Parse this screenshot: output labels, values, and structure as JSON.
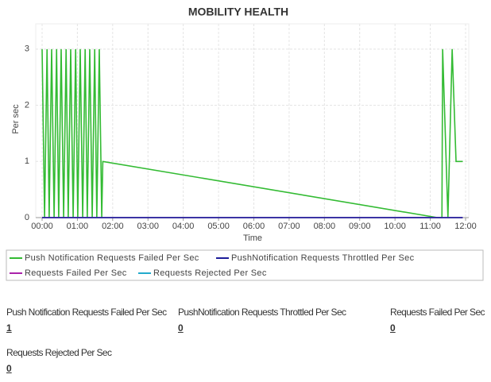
{
  "chart_data": {
    "type": "line",
    "title": "MOBILITY HEALTH",
    "y_label": "Per sec",
    "x_label": "Time",
    "x": [
      0,
      0.07,
      0.14,
      0.2,
      0.27,
      0.34,
      0.41,
      0.47,
      0.54,
      0.61,
      0.68,
      0.74,
      0.81,
      0.88,
      0.95,
      1.01,
      1.08,
      1.15,
      1.22,
      1.28,
      1.35,
      1.42,
      1.49,
      1.55,
      1.62,
      1.69,
      1.72,
      11.2,
      11.33,
      11.35,
      11.5,
      11.62,
      11.73,
      11.92
    ],
    "series": [
      {
        "name": "Push Notification Requests Failed Per Sec",
        "color": "#33bb33",
        "values": [
          3,
          0,
          3,
          0,
          3,
          0,
          3,
          0,
          3,
          0,
          3,
          0,
          3,
          0,
          3,
          0,
          3,
          0,
          3,
          0,
          3,
          0,
          3,
          0,
          3,
          0,
          1,
          0,
          0,
          3,
          0,
          3,
          1,
          1
        ]
      },
      {
        "name": "PushNotification Requests Throttled Per Sec",
        "color": "#1c1c99",
        "values": [
          0,
          0,
          0,
          0,
          0,
          0,
          0,
          0,
          0,
          0,
          0,
          0,
          0,
          0,
          0,
          0,
          0,
          0,
          0,
          0,
          0,
          0,
          0,
          0,
          0,
          0,
          0,
          0,
          0,
          0,
          0,
          0,
          0,
          0
        ]
      },
      {
        "name": "Requests Failed Per Sec",
        "color": "#aa22aa",
        "values": [
          0,
          0,
          0,
          0,
          0,
          0,
          0,
          0,
          0,
          0,
          0,
          0,
          0,
          0,
          0,
          0,
          0,
          0,
          0,
          0,
          0,
          0,
          0,
          0,
          0,
          0,
          0,
          0,
          0,
          0,
          0,
          0,
          0,
          0
        ]
      },
      {
        "name": "Requests Rejected Per Sec",
        "color": "#22aacc",
        "values": [
          0,
          0,
          0,
          0,
          0,
          0,
          0,
          0,
          0,
          0,
          0,
          0,
          0,
          0,
          0,
          0,
          0,
          0,
          0,
          0,
          0,
          0,
          0,
          0,
          0,
          0,
          0,
          0,
          0,
          0,
          0,
          0,
          0,
          0
        ]
      }
    ],
    "xlim": [
      -0.18,
      12.09
    ],
    "xticks": [
      {
        "value": 0,
        "label": "00:00"
      },
      {
        "value": 1,
        "label": "01:00"
      },
      {
        "value": 2,
        "label": "02:00"
      },
      {
        "value": 3,
        "label": "03:00"
      },
      {
        "value": 4,
        "label": "04:00"
      },
      {
        "value": 5,
        "label": "05:00"
      },
      {
        "value": 6,
        "label": "06:00"
      },
      {
        "value": 7,
        "label": "07:00"
      },
      {
        "value": 8,
        "label": "08:00"
      },
      {
        "value": 9,
        "label": "09:00"
      },
      {
        "value": 10,
        "label": "10:00"
      },
      {
        "value": 11,
        "label": "11:00"
      },
      {
        "value": 12,
        "label": "12:00"
      }
    ],
    "ylim": [
      0,
      3.45
    ],
    "yticks": [
      0,
      1,
      2,
      3
    ],
    "grid": true
  },
  "summary": [
    {
      "label": "Push Notification Requests Failed Per Sec",
      "value": "1"
    },
    {
      "label": "PushNotification Requests Throttled Per Sec",
      "value": "0"
    },
    {
      "label": "Requests Failed Per Sec",
      "value": "0"
    },
    {
      "label": "Requests Rejected Per Sec",
      "value": "0"
    }
  ]
}
